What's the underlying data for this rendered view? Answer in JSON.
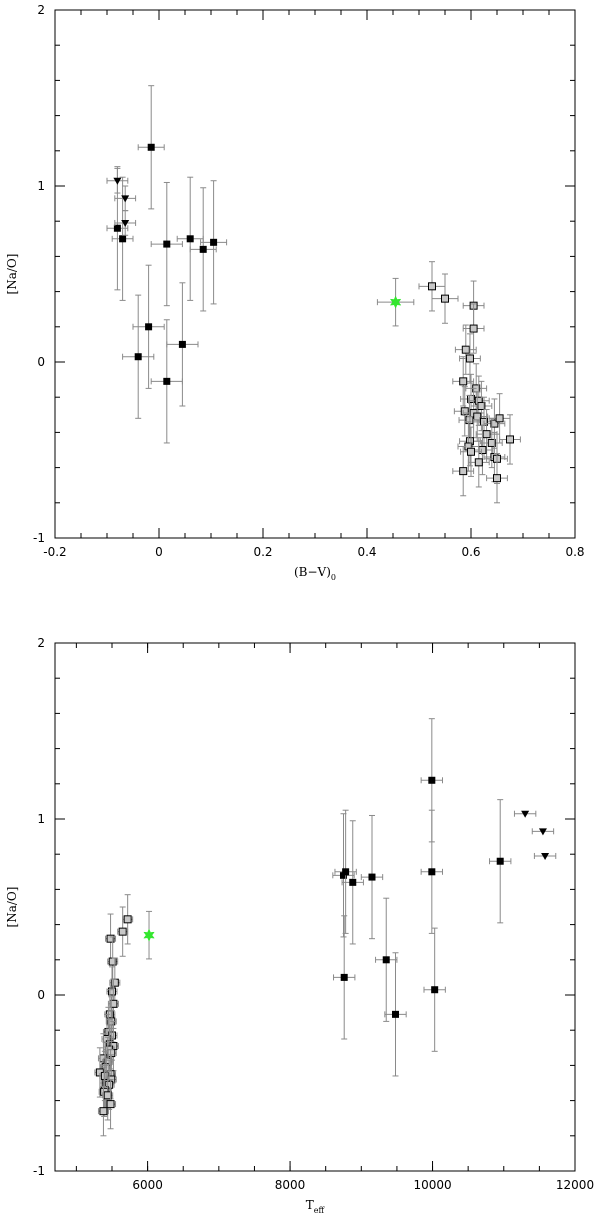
{
  "chart_data": [
    {
      "type": "scatter",
      "title": "",
      "xlabel": "(B−V)",
      "xlabel_sub": "0",
      "ylabel": "[Na/O]",
      "xlim": [
        -0.2,
        0.8
      ],
      "ylim": [
        -1,
        2
      ],
      "xticks": [
        -0.2,
        0,
        0.2,
        0.4,
        0.6,
        0.8
      ],
      "xtick_labels": [
        "-0.2",
        "0",
        "0.2",
        "0.4",
        "0.6",
        "0.8"
      ],
      "yticks": [
        -1,
        0,
        1,
        2
      ],
      "ytick_labels": [
        "-1",
        "0",
        "1",
        "2"
      ],
      "grid": false,
      "series": [
        {
          "marker": "filled-square",
          "color": "#000000",
          "points": [
            {
              "x": -0.08,
              "y": 0.76,
              "xerr": 0.02,
              "yerr": 0.35
            },
            {
              "x": -0.07,
              "y": 0.7,
              "xerr": 0.02,
              "yerr": 0.35
            },
            {
              "x": -0.015,
              "y": 1.22,
              "xerr": 0.025,
              "yerr": 0.35
            },
            {
              "x": 0.015,
              "y": 0.67,
              "xerr": 0.03,
              "yerr": 0.35
            },
            {
              "x": 0.06,
              "y": 0.7,
              "xerr": 0.025,
              "yerr": 0.35
            },
            {
              "x": 0.085,
              "y": 0.64,
              "xerr": 0.025,
              "yerr": 0.35
            },
            {
              "x": 0.105,
              "y": 0.68,
              "xerr": 0.025,
              "yerr": 0.35
            },
            {
              "x": -0.04,
              "y": 0.03,
              "xerr": 0.03,
              "yerr": 0.35
            },
            {
              "x": -0.02,
              "y": 0.2,
              "xerr": 0.03,
              "yerr": 0.35
            },
            {
              "x": 0.015,
              "y": -0.11,
              "xerr": 0.03,
              "yerr": 0.35
            },
            {
              "x": 0.045,
              "y": 0.1,
              "xerr": 0.03,
              "yerr": 0.35
            }
          ]
        },
        {
          "marker": "filled-triangle-down",
          "color": "#000000",
          "points": [
            {
              "x": -0.08,
              "y": 1.03,
              "xerr": 0.02,
              "yerr": 0.07
            },
            {
              "x": -0.065,
              "y": 0.93,
              "xerr": 0.02,
              "yerr": 0.07
            },
            {
              "x": -0.065,
              "y": 0.79,
              "xerr": 0.02,
              "yerr": 0.07
            }
          ]
        },
        {
          "marker": "star",
          "color": "#33e62e",
          "points": [
            {
              "x": 0.455,
              "y": 0.34,
              "xerr": 0.035,
              "yerr": 0.135
            }
          ]
        },
        {
          "marker": "open-square",
          "color": "#000000",
          "points": [
            {
              "x": 0.525,
              "y": 0.43,
              "xerr": 0.025,
              "yerr": 0.14
            },
            {
              "x": 0.55,
              "y": 0.36,
              "xerr": 0.025,
              "yerr": 0.14
            },
            {
              "x": 0.605,
              "y": 0.32,
              "xerr": 0.02,
              "yerr": 0.14
            },
            {
              "x": 0.605,
              "y": 0.19,
              "xerr": 0.02,
              "yerr": 0.14
            },
            {
              "x": 0.59,
              "y": 0.07,
              "xerr": 0.02,
              "yerr": 0.14
            },
            {
              "x": 0.598,
              "y": 0.02,
              "xerr": 0.02,
              "yerr": 0.14
            },
            {
              "x": 0.585,
              "y": -0.11,
              "xerr": 0.02,
              "yerr": 0.14
            },
            {
              "x": 0.61,
              "y": -0.15,
              "xerr": 0.02,
              "yerr": 0.14
            },
            {
              "x": 0.6,
              "y": -0.21,
              "xerr": 0.02,
              "yerr": 0.14
            },
            {
              "x": 0.615,
              "y": -0.22,
              "xerr": 0.02,
              "yerr": 0.14
            },
            {
              "x": 0.62,
              "y": -0.25,
              "xerr": 0.02,
              "yerr": 0.14
            },
            {
              "x": 0.588,
              "y": -0.28,
              "xerr": 0.02,
              "yerr": 0.14
            },
            {
              "x": 0.605,
              "y": -0.29,
              "xerr": 0.02,
              "yerr": 0.14
            },
            {
              "x": 0.612,
              "y": -0.31,
              "xerr": 0.02,
              "yerr": 0.14
            },
            {
              "x": 0.597,
              "y": -0.33,
              "xerr": 0.02,
              "yerr": 0.14
            },
            {
              "x": 0.625,
              "y": -0.34,
              "xerr": 0.02,
              "yerr": 0.14
            },
            {
              "x": 0.645,
              "y": -0.35,
              "xerr": 0.02,
              "yerr": 0.14
            },
            {
              "x": 0.655,
              "y": -0.32,
              "xerr": 0.02,
              "yerr": 0.14
            },
            {
              "x": 0.63,
              "y": -0.41,
              "xerr": 0.02,
              "yerr": 0.14
            },
            {
              "x": 0.675,
              "y": -0.44,
              "xerr": 0.02,
              "yerr": 0.14
            },
            {
              "x": 0.598,
              "y": -0.45,
              "xerr": 0.02,
              "yerr": 0.14
            },
            {
              "x": 0.64,
              "y": -0.46,
              "xerr": 0.02,
              "yerr": 0.14
            },
            {
              "x": 0.595,
              "y": -0.48,
              "xerr": 0.02,
              "yerr": 0.14
            },
            {
              "x": 0.622,
              "y": -0.5,
              "xerr": 0.02,
              "yerr": 0.14
            },
            {
              "x": 0.6,
              "y": -0.51,
              "xerr": 0.02,
              "yerr": 0.14
            },
            {
              "x": 0.645,
              "y": -0.54,
              "xerr": 0.02,
              "yerr": 0.14
            },
            {
              "x": 0.65,
              "y": -0.55,
              "xerr": 0.02,
              "yerr": 0.14
            },
            {
              "x": 0.615,
              "y": -0.57,
              "xerr": 0.02,
              "yerr": 0.14
            },
            {
              "x": 0.585,
              "y": -0.62,
              "xerr": 0.02,
              "yerr": 0.14
            },
            {
              "x": 0.65,
              "y": -0.66,
              "xerr": 0.02,
              "yerr": 0.14
            }
          ]
        }
      ]
    },
    {
      "type": "scatter",
      "title": "",
      "xlabel": "T",
      "xlabel_sub": "eff",
      "ylabel": "[Na/O]",
      "xlim": [
        4700,
        12000
      ],
      "ylim": [
        -1,
        2
      ],
      "xticks": [
        6000,
        8000,
        10000,
        12000
      ],
      "xtick_labels": [
        "6000",
        "8000",
        "10000",
        "12000"
      ],
      "yticks": [
        -1,
        0,
        1,
        2
      ],
      "ytick_labels": [
        "-1",
        "0",
        "1",
        "2"
      ],
      "grid": false,
      "series": [
        {
          "marker": "filled-square",
          "color": "#000000",
          "points": [
            {
              "x": 8750,
              "y": 0.68,
              "xerr": 150,
              "yerr": 0.35
            },
            {
              "x": 8780,
              "y": 0.7,
              "xerr": 150,
              "yerr": 0.35
            },
            {
              "x": 8880,
              "y": 0.64,
              "xerr": 150,
              "yerr": 0.35
            },
            {
              "x": 9150,
              "y": 0.67,
              "xerr": 150,
              "yerr": 0.35
            },
            {
              "x": 8760,
              "y": 0.1,
              "xerr": 150,
              "yerr": 0.35
            },
            {
              "x": 9350,
              "y": 0.2,
              "xerr": 150,
              "yerr": 0.35
            },
            {
              "x": 9480,
              "y": -0.11,
              "xerr": 150,
              "yerr": 0.35
            },
            {
              "x": 9990,
              "y": 1.22,
              "xerr": 150,
              "yerr": 0.35
            },
            {
              "x": 9990,
              "y": 0.7,
              "xerr": 150,
              "yerr": 0.35
            },
            {
              "x": 10030,
              "y": 0.03,
              "xerr": 150,
              "yerr": 0.35
            },
            {
              "x": 10950,
              "y": 0.76,
              "xerr": 150,
              "yerr": 0.35
            }
          ]
        },
        {
          "marker": "filled-triangle-down",
          "color": "#000000",
          "points": [
            {
              "x": 11300,
              "y": 1.03,
              "xerr": 150,
              "yerr": 0.0
            },
            {
              "x": 11550,
              "y": 0.93,
              "xerr": 150,
              "yerr": 0.0
            },
            {
              "x": 11580,
              "y": 0.79,
              "xerr": 150,
              "yerr": 0.0
            }
          ]
        },
        {
          "marker": "star",
          "color": "#33e62e",
          "points": [
            {
              "x": 6020,
              "y": 0.34,
              "xerr": 0,
              "yerr": 0.135
            }
          ]
        },
        {
          "marker": "open-square",
          "color": "#000000",
          "points": [
            {
              "x": 5720,
              "y": 0.43,
              "xerr": 70,
              "yerr": 0.14
            },
            {
              "x": 5650,
              "y": 0.36,
              "xerr": 70,
              "yerr": 0.14
            },
            {
              "x": 5480,
              "y": 0.32,
              "xerr": 70,
              "yerr": 0.14
            },
            {
              "x": 5510,
              "y": 0.19,
              "xerr": 70,
              "yerr": 0.14
            },
            {
              "x": 5540,
              "y": 0.07,
              "xerr": 70,
              "yerr": 0.14
            },
            {
              "x": 5500,
              "y": 0.02,
              "xerr": 70,
              "yerr": 0.14
            },
            {
              "x": 5520,
              "y": -0.05,
              "xerr": 70,
              "yerr": 0.14
            },
            {
              "x": 5470,
              "y": -0.11,
              "xerr": 70,
              "yerr": 0.14
            },
            {
              "x": 5490,
              "y": -0.15,
              "xerr": 70,
              "yerr": 0.14
            },
            {
              "x": 5450,
              "y": -0.21,
              "xerr": 70,
              "yerr": 0.14
            },
            {
              "x": 5500,
              "y": -0.23,
              "xerr": 70,
              "yerr": 0.14
            },
            {
              "x": 5430,
              "y": -0.25,
              "xerr": 70,
              "yerr": 0.14
            },
            {
              "x": 5470,
              "y": -0.28,
              "xerr": 70,
              "yerr": 0.14
            },
            {
              "x": 5520,
              "y": -0.29,
              "xerr": 70,
              "yerr": 0.14
            },
            {
              "x": 5460,
              "y": -0.31,
              "xerr": 70,
              "yerr": 0.14
            },
            {
              "x": 5490,
              "y": -0.33,
              "xerr": 70,
              "yerr": 0.14
            },
            {
              "x": 5380,
              "y": -0.36,
              "xerr": 70,
              "yerr": 0.14
            },
            {
              "x": 5440,
              "y": -0.38,
              "xerr": 70,
              "yerr": 0.14
            },
            {
              "x": 5410,
              "y": -0.41,
              "xerr": 70,
              "yerr": 0.14
            },
            {
              "x": 5330,
              "y": -0.44,
              "xerr": 70,
              "yerr": 0.14
            },
            {
              "x": 5480,
              "y": -0.45,
              "xerr": 70,
              "yerr": 0.14
            },
            {
              "x": 5400,
              "y": -0.46,
              "xerr": 70,
              "yerr": 0.14
            },
            {
              "x": 5490,
              "y": -0.48,
              "xerr": 70,
              "yerr": 0.14
            },
            {
              "x": 5420,
              "y": -0.5,
              "xerr": 70,
              "yerr": 0.14
            },
            {
              "x": 5460,
              "y": -0.51,
              "xerr": 70,
              "yerr": 0.14
            },
            {
              "x": 5400,
              "y": -0.54,
              "xerr": 70,
              "yerr": 0.14
            },
            {
              "x": 5390,
              "y": -0.55,
              "xerr": 70,
              "yerr": 0.14
            },
            {
              "x": 5440,
              "y": -0.57,
              "xerr": 70,
              "yerr": 0.14
            },
            {
              "x": 5480,
              "y": -0.62,
              "xerr": 70,
              "yerr": 0.14
            },
            {
              "x": 5380,
              "y": -0.66,
              "xerr": 70,
              "yerr": 0.14
            }
          ]
        }
      ]
    }
  ]
}
